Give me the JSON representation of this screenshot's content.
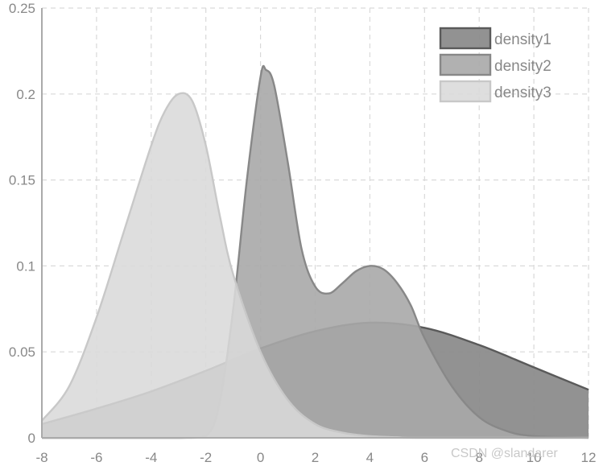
{
  "chart_data": {
    "type": "area",
    "title": "",
    "xlabel": "",
    "ylabel": "",
    "xlim": [
      -8,
      12
    ],
    "ylim": [
      0,
      0.25
    ],
    "x_ticks": [
      -8,
      -6,
      -4,
      -2,
      0,
      2,
      4,
      6,
      8,
      10,
      12
    ],
    "y_ticks": [
      0,
      0.05,
      0.1,
      0.15,
      0.2,
      0.25
    ],
    "x_tick_labels": [
      "-8",
      "-6",
      "-4",
      "-2",
      "0",
      "2",
      "4",
      "6",
      "8",
      "10",
      "12"
    ],
    "y_tick_labels": [
      "0",
      "0.05",
      "0.1",
      "0.15",
      "0.2",
      "0.25"
    ],
    "grid": true,
    "legend_position": "top-right",
    "series": [
      {
        "name": "density1",
        "fill": "#8c8c8c",
        "stroke": "#5a5a5a",
        "opacity": 0.95,
        "x": [
          -8,
          -6,
          -4,
          -2,
          0,
          2,
          4,
          6,
          8,
          10,
          12
        ],
        "y": [
          0.008,
          0.017,
          0.027,
          0.039,
          0.052,
          0.062,
          0.067,
          0.064,
          0.054,
          0.041,
          0.028
        ]
      },
      {
        "name": "density2",
        "fill": "#a8a8a8",
        "stroke": "#888888",
        "opacity": 0.9,
        "x": [
          -8,
          -3,
          -2,
          -1.5,
          -1,
          -0.5,
          0,
          0.2,
          0.5,
          1,
          1.5,
          2,
          2.5,
          3,
          3.5,
          4,
          4.5,
          5,
          5.5,
          6,
          7,
          8,
          9,
          10,
          12
        ],
        "y": [
          0,
          0,
          0.001,
          0.02,
          0.075,
          0.15,
          0.21,
          0.214,
          0.205,
          0.16,
          0.11,
          0.088,
          0.084,
          0.09,
          0.097,
          0.1,
          0.098,
          0.09,
          0.077,
          0.058,
          0.03,
          0.012,
          0.004,
          0.001,
          0
        ]
      },
      {
        "name": "density3",
        "fill": "#d9d9d9",
        "stroke": "#c8c8c8",
        "opacity": 0.88,
        "x": [
          -8,
          -7,
          -6,
          -5,
          -4,
          -3.5,
          -3,
          -2.5,
          -2,
          -1.5,
          -1,
          0,
          1,
          2,
          3,
          4,
          5,
          6,
          12
        ],
        "y": [
          0.01,
          0.03,
          0.07,
          0.12,
          0.17,
          0.19,
          0.2,
          0.196,
          0.17,
          0.13,
          0.095,
          0.05,
          0.022,
          0.008,
          0.003,
          0.001,
          0.0003,
          0,
          0
        ]
      }
    ]
  },
  "watermark": "CSDN @slandarer"
}
